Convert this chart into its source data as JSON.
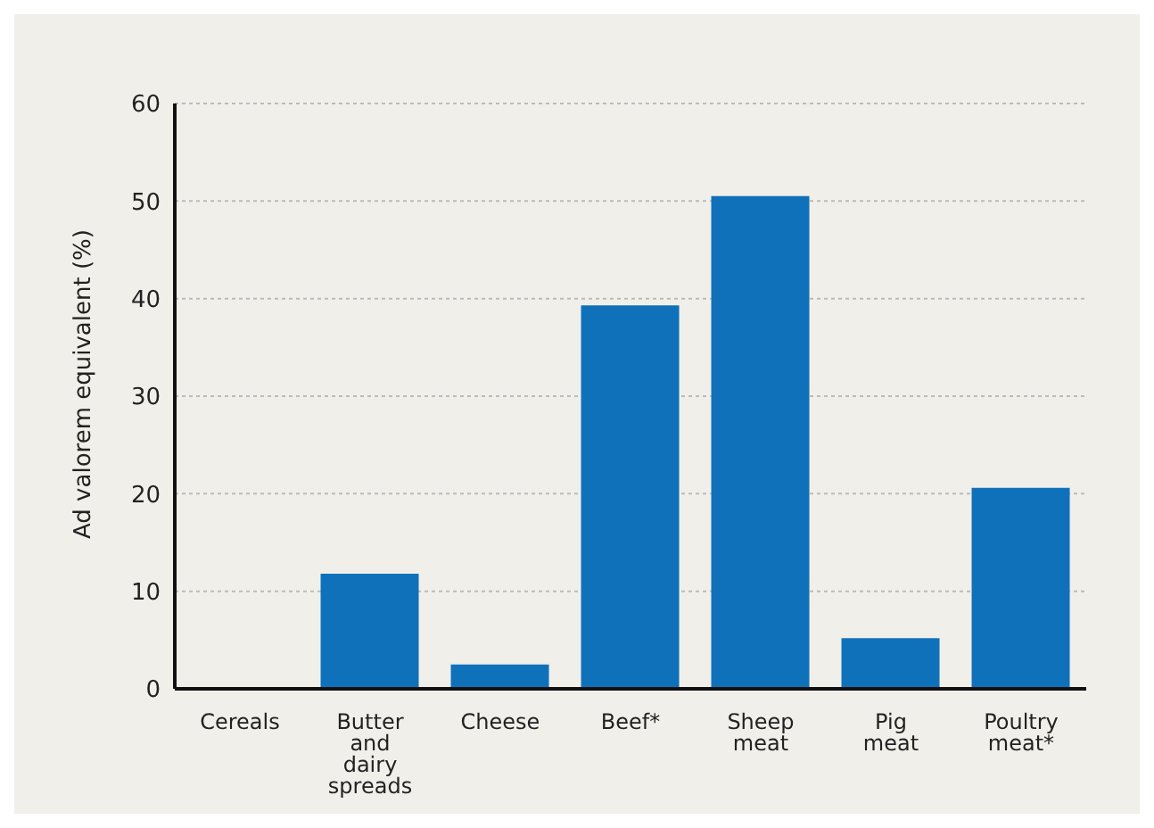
{
  "chart_data": {
    "type": "bar",
    "ylabel": "Ad valorem equivalent (%)",
    "categories": [
      "Cereals",
      "Butter and dairy spreads",
      "Cheese",
      "Beef*",
      "Sheep meat",
      "Pig meat",
      "Poultry meat*"
    ],
    "values": [
      0,
      11.8,
      2.5,
      39.3,
      50.5,
      5.2,
      20.6
    ],
    "color": "#1071bb",
    "ylim": [
      0,
      60
    ],
    "yticks": [
      0,
      10,
      20,
      30,
      40,
      50,
      60
    ],
    "grid": "y"
  }
}
